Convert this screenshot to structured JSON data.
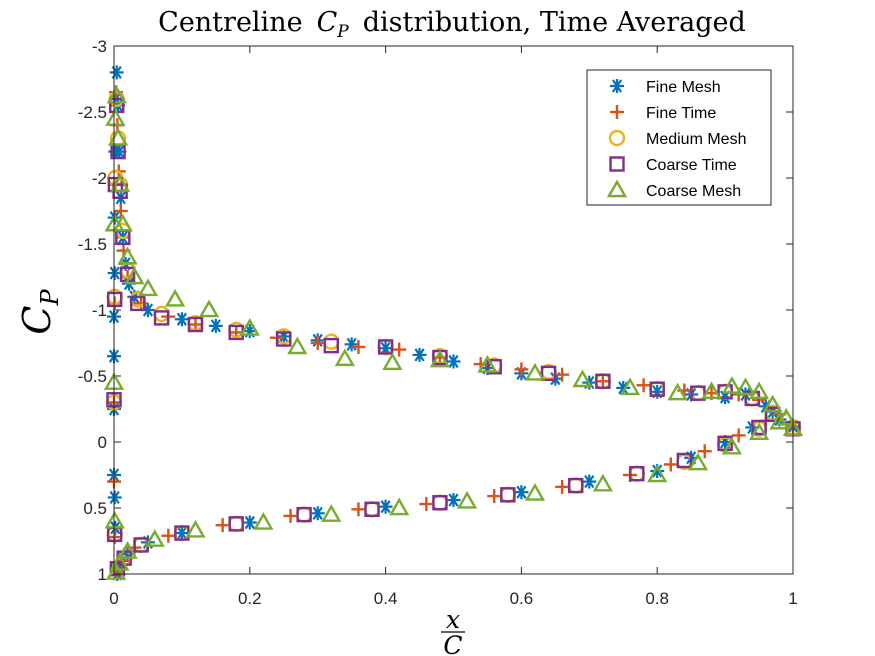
{
  "chart_data": {
    "type": "scatter",
    "title": {
      "text": "Centreline",
      "math_base": "C",
      "math_sub": "P",
      "suffix": "distribution, Time Averaged"
    },
    "xlabel": {
      "numerator": "x",
      "denominator": "C"
    },
    "ylabel": {
      "base": "C",
      "sub": "P"
    },
    "xlim": [
      0,
      1
    ],
    "ylim": [
      -3,
      1
    ],
    "y_reversed": true,
    "x_ticks": [
      0,
      0.2,
      0.4,
      0.6,
      0.8,
      1
    ],
    "x_tick_labels": [
      "0",
      "0.2",
      "0.4",
      "0.6",
      "0.8",
      "1"
    ],
    "y_ticks": [
      -3,
      -2.5,
      -2,
      -1.5,
      -1,
      -0.5,
      0,
      0.5,
      1
    ],
    "y_tick_labels": [
      "-3",
      "-2.5",
      "-2",
      "-1.5",
      "-1",
      "-0.5",
      "0",
      "0.5",
      "1"
    ],
    "grid": false,
    "legend_position": "top-right",
    "series": [
      {
        "name": "Fine Mesh",
        "marker": "asterisk",
        "color": "#0072BD",
        "x": [
          0.0,
          0.0,
          0.0,
          0.0,
          0.001,
          0.001,
          0.002,
          0.003,
          0.004,
          0.006,
          0.008,
          0.01,
          0.013,
          0.017,
          0.022,
          0.03,
          0.05,
          0.1,
          0.15,
          0.2,
          0.25,
          0.3,
          0.35,
          0.4,
          0.45,
          0.5,
          0.55,
          0.6,
          0.65,
          0.7,
          0.75,
          0.8,
          0.85,
          0.9,
          0.93,
          0.96,
          0.98,
          1.0,
          0.97,
          0.94,
          0.9,
          0.85,
          0.8,
          0.7,
          0.6,
          0.5,
          0.4,
          0.3,
          0.2,
          0.1,
          0.05,
          0.02,
          0.01,
          0.005,
          0.002,
          0.001
        ],
        "y": [
          0.25,
          -0.25,
          -0.65,
          -0.95,
          -1.28,
          -1.7,
          -2.2,
          -2.6,
          -2.8,
          -2.55,
          -2.2,
          -1.85,
          -1.55,
          -1.35,
          -1.2,
          -1.1,
          -1.0,
          -0.93,
          -0.88,
          -0.84,
          -0.8,
          -0.77,
          -0.74,
          -0.71,
          -0.66,
          -0.61,
          -0.56,
          -0.52,
          -0.48,
          -0.45,
          -0.41,
          -0.38,
          -0.36,
          -0.34,
          -0.36,
          -0.27,
          -0.17,
          -0.12,
          -0.23,
          -0.11,
          0.0,
          0.12,
          0.22,
          0.3,
          0.38,
          0.44,
          0.49,
          0.54,
          0.61,
          0.69,
          0.76,
          0.85,
          0.93,
          1.0,
          0.65,
          0.42
        ]
      },
      {
        "name": "Fine Time",
        "marker": "plus",
        "color": "#D95319",
        "x": [
          0.0,
          0.0,
          0.001,
          0.002,
          0.003,
          0.005,
          0.007,
          0.01,
          0.014,
          0.02,
          0.04,
          0.08,
          0.12,
          0.18,
          0.24,
          0.3,
          0.36,
          0.42,
          0.48,
          0.54,
          0.6,
          0.66,
          0.72,
          0.78,
          0.84,
          0.88,
          0.92,
          0.95,
          0.98,
          1.0,
          0.96,
          0.92,
          0.87,
          0.82,
          0.76,
          0.66,
          0.56,
          0.46,
          0.36,
          0.26,
          0.16,
          0.08,
          0.03,
          0.012,
          0.004,
          0.001
        ],
        "y": [
          0.3,
          -0.3,
          -1.05,
          -1.95,
          -2.65,
          -2.4,
          -2.05,
          -1.75,
          -1.45,
          -1.25,
          -1.05,
          -0.95,
          -0.89,
          -0.83,
          -0.79,
          -0.75,
          -0.72,
          -0.7,
          -0.64,
          -0.59,
          -0.55,
          -0.51,
          -0.46,
          -0.43,
          -0.39,
          -0.37,
          -0.36,
          -0.32,
          -0.21,
          -0.12,
          -0.16,
          -0.05,
          0.07,
          0.17,
          0.25,
          0.34,
          0.41,
          0.47,
          0.51,
          0.56,
          0.63,
          0.71,
          0.8,
          0.9,
          0.98,
          0.72
        ]
      },
      {
        "name": "Medium Mesh",
        "marker": "circle",
        "color": "#EDB120",
        "x": [
          0.0,
          0.001,
          0.002,
          0.004,
          0.006,
          0.009,
          0.013,
          0.02,
          0.035,
          0.07,
          0.12,
          0.18,
          0.25,
          0.32,
          0.4,
          0.48,
          0.56,
          0.64,
          0.72,
          0.8,
          0.86,
          0.9,
          0.94,
          0.97,
          1.0,
          0.95,
          0.9,
          0.84,
          0.77,
          0.68,
          0.58,
          0.48,
          0.38,
          0.28,
          0.18,
          0.1,
          0.04,
          0.015,
          0.005,
          0.001
        ],
        "y": [
          -0.3,
          -1.1,
          -2.0,
          -2.6,
          -2.3,
          -1.95,
          -1.6,
          -1.3,
          -1.08,
          -0.97,
          -0.9,
          -0.85,
          -0.8,
          -0.76,
          -0.72,
          -0.65,
          -0.58,
          -0.53,
          -0.46,
          -0.4,
          -0.37,
          -0.38,
          -0.33,
          -0.22,
          -0.11,
          -0.1,
          0.02,
          0.15,
          0.24,
          0.33,
          0.4,
          0.46,
          0.51,
          0.55,
          0.62,
          0.69,
          0.78,
          0.88,
          0.96,
          0.7
        ]
      },
      {
        "name": "Coarse Time",
        "marker": "square",
        "color": "#7E2F8E",
        "x": [
          0.0,
          0.001,
          0.002,
          0.004,
          0.006,
          0.009,
          0.013,
          0.02,
          0.035,
          0.07,
          0.12,
          0.18,
          0.25,
          0.32,
          0.4,
          0.48,
          0.56,
          0.64,
          0.72,
          0.8,
          0.86,
          0.9,
          0.94,
          0.97,
          1.0,
          0.95,
          0.9,
          0.84,
          0.77,
          0.68,
          0.58,
          0.48,
          0.38,
          0.28,
          0.18,
          0.1,
          0.04,
          0.015,
          0.005,
          0.001
        ],
        "y": [
          -0.32,
          -1.08,
          -1.95,
          -2.55,
          -2.2,
          -1.9,
          -1.55,
          -1.27,
          -1.05,
          -0.94,
          -0.89,
          -0.83,
          -0.78,
          -0.73,
          -0.72,
          -0.64,
          -0.57,
          -0.52,
          -0.46,
          -0.4,
          -0.37,
          -0.38,
          -0.33,
          -0.21,
          -0.1,
          -0.11,
          0.01,
          0.14,
          0.24,
          0.33,
          0.4,
          0.46,
          0.51,
          0.55,
          0.62,
          0.69,
          0.78,
          0.88,
          0.96,
          0.7
        ]
      },
      {
        "name": "Coarse Mesh",
        "marker": "triangle",
        "color": "#77AC30",
        "x": [
          0.0,
          0.001,
          0.002,
          0.004,
          0.006,
          0.009,
          0.013,
          0.02,
          0.03,
          0.05,
          0.09,
          0.14,
          0.2,
          0.27,
          0.34,
          0.41,
          0.48,
          0.55,
          0.62,
          0.69,
          0.76,
          0.83,
          0.88,
          0.91,
          0.93,
          0.95,
          0.97,
          0.99,
          1.0,
          0.98,
          0.95,
          0.91,
          0.86,
          0.8,
          0.72,
          0.62,
          0.52,
          0.42,
          0.32,
          0.22,
          0.12,
          0.06,
          0.02,
          0.008,
          0.003,
          0.001
        ],
        "y": [
          -0.45,
          -1.65,
          -2.45,
          -2.62,
          -2.3,
          -1.95,
          -1.65,
          -1.4,
          -1.25,
          -1.16,
          -1.08,
          -1.0,
          -0.86,
          -0.72,
          -0.63,
          -0.6,
          -0.62,
          -0.58,
          -0.52,
          -0.47,
          -0.41,
          -0.37,
          -0.38,
          -0.42,
          -0.41,
          -0.38,
          -0.28,
          -0.18,
          -0.1,
          -0.15,
          -0.07,
          0.04,
          0.16,
          0.25,
          0.32,
          0.39,
          0.45,
          0.5,
          0.55,
          0.61,
          0.67,
          0.74,
          0.83,
          0.92,
          0.99,
          0.6
        ]
      }
    ]
  }
}
